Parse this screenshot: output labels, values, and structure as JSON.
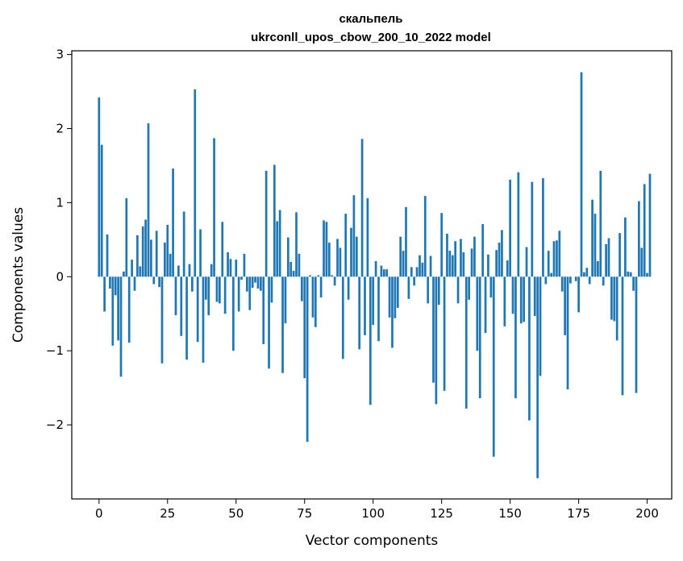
{
  "chart_data": {
    "type": "bar",
    "title": "скальпель",
    "subtitle": "ukrconll_upos_cbow_200_10_2022 model",
    "xlabel": "Vector components",
    "ylabel": "Components values",
    "xlim": [
      -9.95,
      208.95
    ],
    "ylim": [
      -3.0,
      3.05
    ],
    "xticks": [
      0,
      25,
      50,
      75,
      100,
      125,
      150,
      175,
      200
    ],
    "yticks": [
      -2,
      -1,
      0,
      1,
      2,
      3
    ],
    "ytick_labels": [
      "−2",
      "−1",
      "0",
      "1",
      "2",
      "3"
    ],
    "grid": false,
    "legend": "none",
    "bar_color": "#1f77b4",
    "values": [
      2.42,
      1.78,
      -0.47,
      0.57,
      -0.16,
      -0.93,
      -0.25,
      -0.86,
      -1.35,
      0.07,
      1.06,
      -0.89,
      0.23,
      -0.19,
      0.56,
      0.14,
      0.68,
      0.77,
      2.07,
      0.5,
      -0.1,
      0.62,
      -0.14,
      -1.17,
      0.46,
      0.7,
      0.31,
      1.46,
      -0.52,
      0.15,
      -0.8,
      0.88,
      -1.12,
      0.17,
      -0.2,
      2.53,
      -0.88,
      0.64,
      -1.16,
      -0.31,
      -0.52,
      0.17,
      1.87,
      -0.34,
      -0.36,
      0.74,
      -0.5,
      0.33,
      0.24,
      -1.0,
      0.23,
      -0.47,
      -0.04,
      0.31,
      -0.2,
      -0.45,
      -0.15,
      -0.08,
      -0.16,
      -0.19,
      -0.91,
      1.43,
      -1.24,
      -0.35,
      1.51,
      0.75,
      0.9,
      -1.3,
      -0.63,
      0.53,
      0.2,
      0.08,
      0.87,
      0.31,
      -0.33,
      -1.37,
      -2.23,
      0.02,
      -0.55,
      -0.68,
      0.02,
      -0.28,
      0.76,
      0.74,
      0.46,
      0.02,
      -0.12,
      0.51,
      0.39,
      -1.11,
      0.85,
      -0.31,
      0.66,
      1.1,
      0.54,
      -0.98,
      1.86,
      -0.79,
      1.06,
      -1.73,
      -0.65,
      0.21,
      -0.87,
      0.15,
      0.1,
      0.1,
      -0.55,
      -0.96,
      -0.56,
      -0.42,
      0.54,
      0.35,
      0.94,
      -0.3,
      0.13,
      -0.12,
      0.13,
      0.29,
      0.19,
      1.09,
      -0.36,
      0.28,
      -1.43,
      -1.72,
      -0.38,
      0.86,
      -1.54,
      0.58,
      0.35,
      0.29,
      0.48,
      -0.36,
      0.51,
      0.33,
      -1.78,
      -0.31,
      0.38,
      0.54,
      -1.0,
      -1.64,
      0.71,
      -0.76,
      0.3,
      -0.28,
      -2.43,
      0.36,
      0.46,
      0.63,
      -0.67,
      0.22,
      1.31,
      -0.5,
      -1.64,
      1.41,
      -0.63,
      -0.61,
      0.4,
      -1.94,
      1.28,
      -0.53,
      -2.72,
      -1.34,
      1.33,
      -0.1,
      0.35,
      0.05,
      0.48,
      0.49,
      0.62,
      -0.2,
      -0.79,
      -1.52,
      -0.09,
      0.0,
      -0.06,
      -0.48,
      2.76,
      0.06,
      0.12,
      -0.1,
      1.04,
      0.85,
      0.21,
      1.43,
      -0.12,
      0.44,
      0.52,
      -0.58,
      -0.6,
      -0.86,
      0.59,
      -1.6,
      0.8,
      0.07,
      0.06,
      -0.19,
      -1.57,
      1.02,
      0.39,
      1.25,
      0.05,
      1.39
    ]
  }
}
